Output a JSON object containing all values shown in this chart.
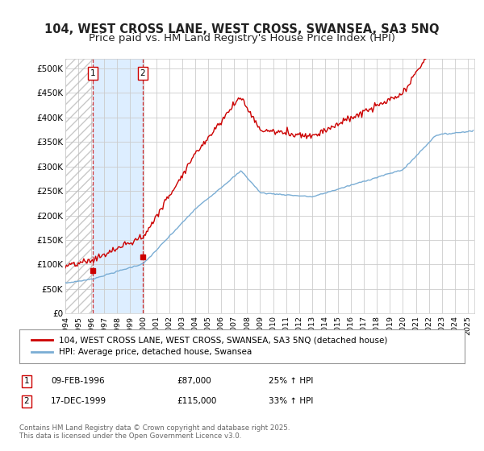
{
  "title": "104, WEST CROSS LANE, WEST CROSS, SWANSEA, SA3 5NQ",
  "subtitle": "Price paid vs. HM Land Registry's House Price Index (HPI)",
  "ylim": [
    0,
    520000
  ],
  "ytick_labels": [
    "£0",
    "£50K",
    "£100K",
    "£150K",
    "£200K",
    "£250K",
    "£300K",
    "£350K",
    "£400K",
    "£450K",
    "£500K"
  ],
  "x_start_year": 1994,
  "x_end_year": 2025.5,
  "purchase1_date": 1996.11,
  "purchase1_price": 87000,
  "purchase2_date": 1999.96,
  "purchase2_price": 115000,
  "purchase1_text": "09-FEB-1996",
  "purchase1_amount": "£87,000",
  "purchase1_hpi": "25% ↑ HPI",
  "purchase2_text": "17-DEC-1999",
  "purchase2_amount": "£115,000",
  "purchase2_hpi": "33% ↑ HPI",
  "line_color_price": "#cc0000",
  "line_color_hpi": "#7aadd4",
  "hatch_left_color": "#e8e8e8",
  "fill_between_color": "#ddeeff",
  "grid_color": "#cccccc",
  "background_color": "#ffffff",
  "legend_label_price": "104, WEST CROSS LANE, WEST CROSS, SWANSEA, SA3 5NQ (detached house)",
  "legend_label_hpi": "HPI: Average price, detached house, Swansea",
  "footer": "Contains HM Land Registry data © Crown copyright and database right 2025.\nThis data is licensed under the Open Government Licence v3.0.",
  "title_fontsize": 10.5,
  "subtitle_fontsize": 9.5
}
